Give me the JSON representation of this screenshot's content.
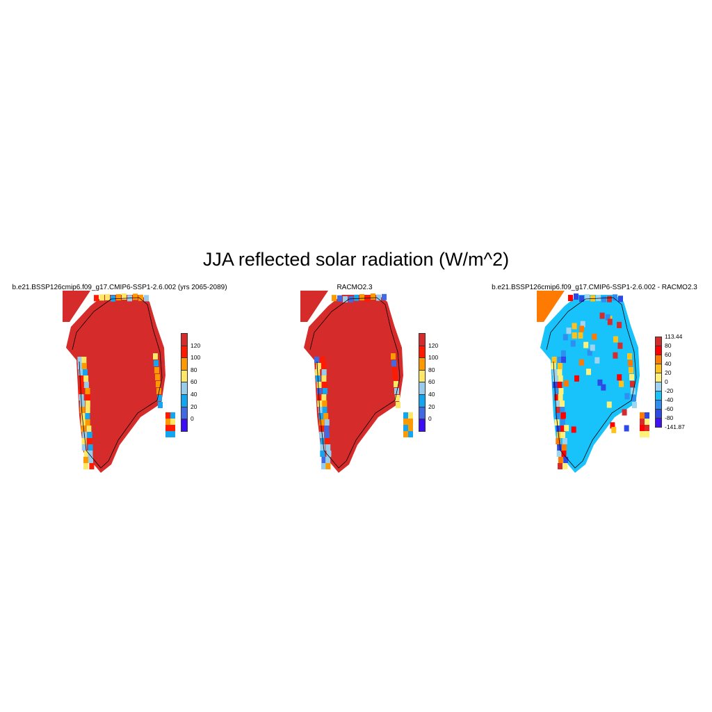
{
  "title": "JJA reflected solar radiation (W/m^2)",
  "panels": [
    {
      "title": "b.e21.BSSP126cmip6.f09_g17.CMIP6-SSP1-2.6.002 (yrs 2065-2089)",
      "main_color": "#d62b2b",
      "edge_colors": [
        "#ff1a00",
        "#ffe866",
        "#97cdeb",
        "#14a5f0",
        "#ff9900"
      ],
      "colorbar": {
        "labels": [
          "120",
          "100",
          "80",
          "60",
          "40",
          "20",
          "0"
        ],
        "colors": [
          "#d62b2b",
          "#ff1a00",
          "#ff9900",
          "#ffe866",
          "#97cdeb",
          "#14a5f0",
          "#4169e1",
          "#3b0ef7"
        ]
      }
    },
    {
      "title": "RACMO2.3",
      "main_color": "#d62b2b",
      "edge_colors": [
        "#ff1a00",
        "#ffe866",
        "#4169e1",
        "#14a5f0",
        "#ff9900",
        "#97cdeb"
      ],
      "colorbar": {
        "labels": [
          "120",
          "100",
          "80",
          "60",
          "40",
          "20",
          "0"
        ],
        "colors": [
          "#d62b2b",
          "#ff1a00",
          "#ff9900",
          "#ffe866",
          "#97cdeb",
          "#14a5f0",
          "#4169e1",
          "#3b0ef7"
        ]
      }
    },
    {
      "title": "b.e21.BSSP126cmip6.f09_g17.CMIP6-SSP1-2.6.002 - RACMO2.3",
      "main_color": "#18c2fa",
      "edge_colors": [
        "#ff7a00",
        "#fff17a",
        "#ffc11a",
        "#2e4ae6",
        "#ff0000",
        "#d62b2b",
        "#2e8ff0",
        "#9fd5f0"
      ],
      "colorbar": {
        "labels": [
          "113.44",
          "80",
          "60",
          "40",
          "20",
          "0",
          "-20",
          "-40",
          "-60",
          "-80",
          "-141.87"
        ],
        "colors": [
          "#d62b2b",
          "#ff0000",
          "#ff7a00",
          "#ffc11a",
          "#fff17a",
          "#9fd5f0",
          "#18c2fa",
          "#2e8ff0",
          "#2e4ae6",
          "#4011f5"
        ]
      }
    }
  ]
}
